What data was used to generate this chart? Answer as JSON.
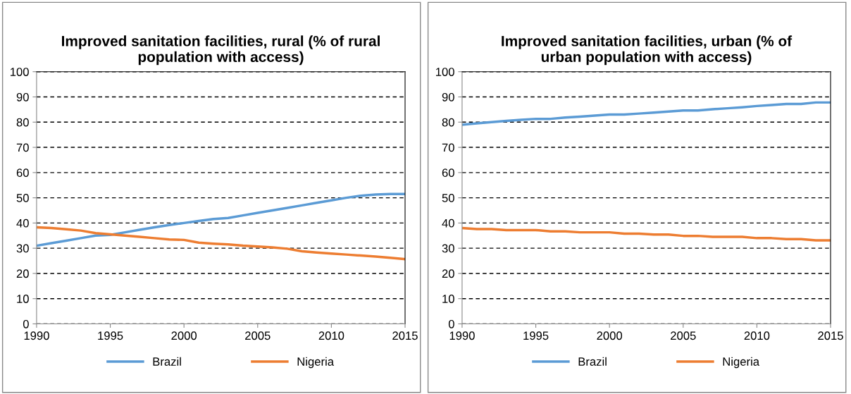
{
  "chart_data": [
    {
      "type": "line",
      "title": "Improved sanitation facilities, rural (% of rural population with access)",
      "x": [
        1990,
        1991,
        1992,
        1993,
        1994,
        1995,
        1996,
        1997,
        1998,
        1999,
        2000,
        2001,
        2002,
        2003,
        2004,
        2005,
        2006,
        2007,
        2008,
        2009,
        2010,
        2011,
        2012,
        2013,
        2014,
        2015
      ],
      "series": [
        {
          "name": "Brazil",
          "color": "#5b9bd5",
          "values": [
            31,
            32,
            33,
            34,
            35,
            35.3,
            36.3,
            37.3,
            38.3,
            39.2,
            40,
            40.8,
            41.6,
            42,
            43,
            44,
            45,
            46,
            47,
            48,
            49,
            50,
            50.8,
            51.3,
            51.5,
            51.5
          ]
        },
        {
          "name": "Nigeria",
          "color": "#ed7d31",
          "values": [
            38.3,
            38,
            37.5,
            37,
            36,
            35.5,
            35,
            34.5,
            34,
            33.5,
            33.3,
            32.2,
            31.8,
            31.5,
            31,
            30.7,
            30.3,
            29.8,
            28.8,
            28.3,
            27.9,
            27.5,
            27.1,
            26.7,
            26.2,
            25.7
          ]
        }
      ],
      "xlim": [
        1990,
        2015
      ],
      "xticks": [
        1990,
        1995,
        2000,
        2005,
        2010,
        2015
      ],
      "ylim": [
        0,
        100
      ],
      "yticks": [
        0,
        10,
        20,
        30,
        40,
        50,
        60,
        70,
        80,
        90,
        100
      ],
      "grid": "y",
      "legend": "bottom",
      "line_style": "solid",
      "marker": "none"
    },
    {
      "type": "line",
      "title": "Improved sanitation facilities, urban (% of urban population with access)",
      "x": [
        1990,
        1991,
        1992,
        1993,
        1994,
        1995,
        1996,
        1997,
        1998,
        1999,
        2000,
        2001,
        2002,
        2003,
        2004,
        2005,
        2006,
        2007,
        2008,
        2009,
        2010,
        2011,
        2012,
        2013,
        2014,
        2015
      ],
      "series": [
        {
          "name": "Brazil",
          "color": "#5b9bd5",
          "values": [
            79,
            79.5,
            80,
            80.5,
            80.9,
            81.3,
            81.3,
            81.8,
            82.2,
            82.6,
            83,
            83,
            83.4,
            83.8,
            84.2,
            84.6,
            84.6,
            85.1,
            85.5,
            85.9,
            86.4,
            86.8,
            87.2,
            87.2,
            87.8,
            87.8
          ]
        },
        {
          "name": "Nigeria",
          "color": "#ed7d31",
          "values": [
            38,
            37.6,
            37.6,
            37.2,
            37.2,
            37.2,
            36.7,
            36.7,
            36.3,
            36.3,
            36.3,
            35.8,
            35.8,
            35.4,
            35.4,
            34.9,
            34.9,
            34.5,
            34.5,
            34.5,
            34,
            34,
            33.6,
            33.6,
            33.1,
            33.1
          ]
        }
      ],
      "xlim": [
        1990,
        2015
      ],
      "xticks": [
        1990,
        1995,
        2000,
        2005,
        2010,
        2015
      ],
      "ylim": [
        0,
        100
      ],
      "yticks": [
        0,
        10,
        20,
        30,
        40,
        50,
        60,
        70,
        80,
        90,
        100
      ],
      "grid": "y",
      "legend": "bottom",
      "line_style": "solid",
      "marker": "none"
    }
  ]
}
